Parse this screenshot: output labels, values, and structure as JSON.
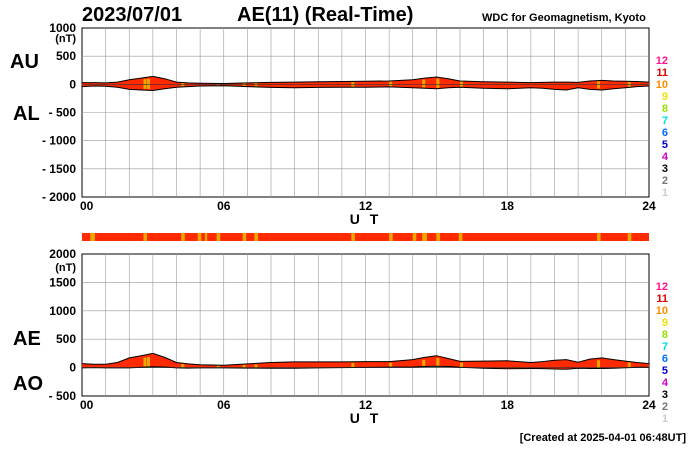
{
  "header": {
    "date": "2023/07/01",
    "title": "AE(11) (Real-Time)",
    "source": "WDC for Geomagnetism, Kyoto"
  },
  "labels": {
    "au": "AU",
    "al": "AL",
    "ae": "AE",
    "ao": "AO",
    "unit": "(nT)"
  },
  "footer": "[Created at 2025-04-01 06:48UT]",
  "station_scale": {
    "values": [
      "12",
      "11",
      "10",
      "9",
      "8",
      "7",
      "6",
      "5",
      "4",
      "3",
      "2",
      "1"
    ],
    "colors": [
      "#ff1493",
      "#e00000",
      "#ff8c00",
      "#f0e000",
      "#99dd00",
      "#00dddd",
      "#0070ff",
      "#0000cc",
      "#cc00cc",
      "#000000",
      "#777777",
      "#cccccc"
    ]
  },
  "colors": {
    "au_al_fill": "#ff2a00",
    "low_station": "#e8a800",
    "bar_base": "#ff2a00",
    "grid": "#999999"
  },
  "chart_data": [
    {
      "type": "area",
      "panel": "AU/AL",
      "xlabel": "U T",
      "xlim": [
        0,
        24
      ],
      "xticks": [
        "00",
        "06",
        "12",
        "18",
        "24"
      ],
      "ylim": [
        -2000,
        1000
      ],
      "yticks": [
        "1000",
        "500",
        "0",
        "- 500",
        "- 1000",
        "- 1500",
        "- 2000"
      ],
      "grid": true,
      "series": [
        {
          "name": "AU",
          "x": [
            0,
            0.5,
            1,
            1.5,
            2,
            2.5,
            3,
            3.5,
            4,
            4.5,
            5,
            6,
            7,
            8,
            9,
            10,
            11,
            12,
            13,
            14,
            14.5,
            15,
            15.5,
            16,
            17,
            18,
            19,
            19.5,
            20,
            20.5,
            21,
            21.5,
            22,
            22.5,
            23,
            23.5,
            24
          ],
          "values": [
            30,
            30,
            25,
            40,
            80,
            110,
            140,
            100,
            40,
            25,
            20,
            15,
            25,
            35,
            40,
            45,
            50,
            55,
            60,
            80,
            110,
            130,
            100,
            60,
            45,
            40,
            30,
            35,
            40,
            40,
            35,
            60,
            70,
            60,
            55,
            50,
            40
          ]
        },
        {
          "name": "AL",
          "x": [
            0,
            0.5,
            1,
            1.5,
            2,
            2.5,
            3,
            3.5,
            4,
            4.5,
            5,
            6,
            7,
            8,
            9,
            10,
            11,
            12,
            13,
            14,
            14.5,
            15,
            15.5,
            16,
            17,
            18,
            19,
            19.5,
            20,
            20.5,
            21,
            21.5,
            22,
            22.5,
            23,
            23.5,
            24
          ],
          "values": [
            -40,
            -30,
            -35,
            -50,
            -90,
            -100,
            -110,
            -80,
            -50,
            -40,
            -30,
            -25,
            -40,
            -55,
            -60,
            -55,
            -50,
            -50,
            -45,
            -60,
            -70,
            -80,
            -60,
            -50,
            -70,
            -80,
            -60,
            -70,
            -90,
            -100,
            -60,
            -90,
            -100,
            -80,
            -60,
            -40,
            -30
          ]
        }
      ]
    },
    {
      "type": "area",
      "panel": "AE/AO",
      "xlabel": "U T",
      "xlim": [
        0,
        24
      ],
      "xticks": [
        "00",
        "06",
        "12",
        "18",
        "24"
      ],
      "ylim": [
        -500,
        2000
      ],
      "yticks": [
        "2000",
        "1500",
        "1000",
        "500",
        "0",
        "- 500"
      ],
      "grid": true,
      "series": [
        {
          "name": "AE",
          "x": [
            0,
            0.5,
            1,
            1.5,
            2,
            2.5,
            3,
            3.5,
            4,
            4.5,
            5,
            6,
            7,
            8,
            9,
            10,
            11,
            12,
            13,
            14,
            14.5,
            15,
            15.5,
            16,
            17,
            18,
            19,
            19.5,
            20,
            20.5,
            21,
            21.5,
            22,
            22.5,
            23,
            23.5,
            24
          ],
          "values": [
            70,
            60,
            60,
            90,
            170,
            210,
            250,
            180,
            90,
            65,
            50,
            40,
            65,
            90,
            100,
            100,
            100,
            105,
            105,
            140,
            180,
            210,
            160,
            110,
            115,
            120,
            90,
            105,
            130,
            140,
            95,
            150,
            170,
            140,
            115,
            90,
            70
          ]
        },
        {
          "name": "AO",
          "x": [
            0,
            0.5,
            1,
            1.5,
            2,
            2.5,
            3,
            3.5,
            4,
            4.5,
            5,
            6,
            7,
            8,
            9,
            10,
            11,
            12,
            13,
            14,
            14.5,
            15,
            15.5,
            16,
            17,
            18,
            19,
            19.5,
            20,
            20.5,
            21,
            21.5,
            22,
            22.5,
            23,
            23.5,
            24
          ],
          "values": [
            -5,
            0,
            -5,
            -5,
            -5,
            5,
            15,
            10,
            -5,
            -8,
            -5,
            -5,
            -8,
            -10,
            -10,
            -5,
            0,
            3,
            8,
            10,
            20,
            25,
            20,
            5,
            -12,
            -20,
            -15,
            -18,
            -25,
            -30,
            -12,
            -15,
            -15,
            -10,
            -3,
            5,
            5
          ]
        }
      ]
    }
  ],
  "station_bar": {
    "xlim": [
      0,
      24
    ],
    "low_station_segments": [
      [
        0.35,
        0.55
      ],
      [
        2.6,
        2.75
      ],
      [
        4.2,
        4.35
      ],
      [
        4.9,
        5.05
      ],
      [
        5.2,
        5.3
      ],
      [
        5.7,
        5.85
      ],
      [
        6.8,
        6.95
      ],
      [
        7.3,
        7.45
      ],
      [
        11.4,
        11.55
      ],
      [
        13.0,
        13.15
      ],
      [
        14.0,
        14.15
      ],
      [
        14.4,
        14.6
      ],
      [
        15.0,
        15.15
      ],
      [
        15.95,
        16.1
      ],
      [
        21.8,
        21.95
      ],
      [
        23.1,
        23.25
      ]
    ],
    "low_station_value": "10"
  },
  "low_station_spikes": [
    2.6,
    2.75,
    4.2,
    5.7,
    6.8,
    7.3,
    11.4,
    13.0,
    14.4,
    15.0,
    16.0,
    21.8,
    23.1
  ]
}
